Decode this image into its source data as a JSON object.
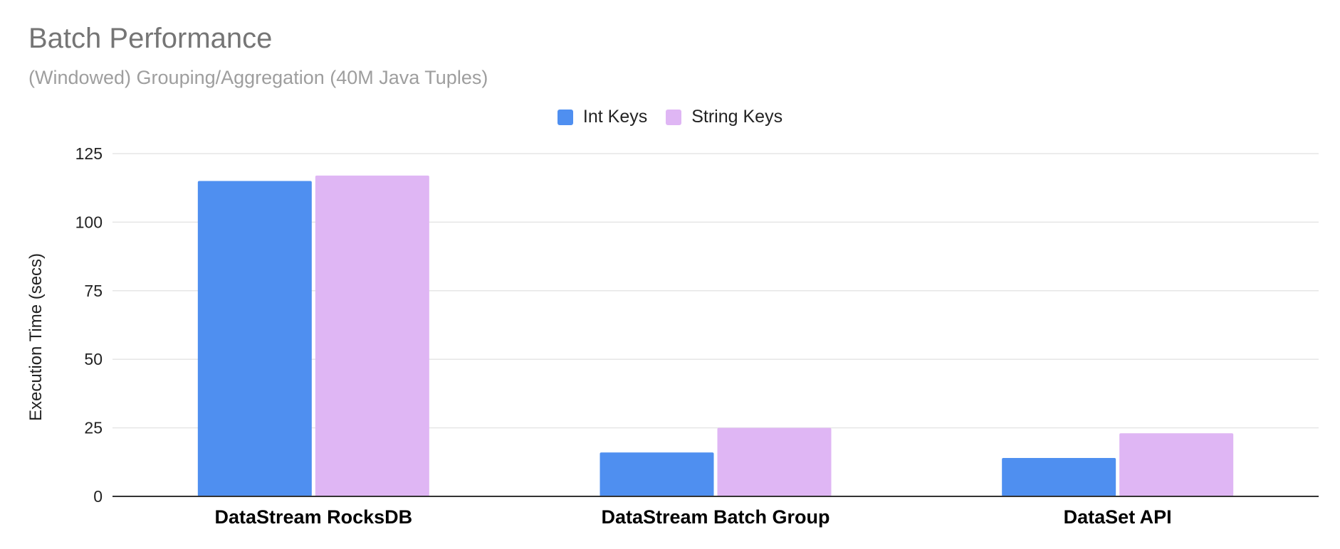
{
  "chart_data": {
    "type": "bar",
    "title": "Batch Performance",
    "subtitle": "(Windowed) Grouping/Aggregation (40M Java Tuples)",
    "xlabel": "",
    "ylabel": "Execution Time (secs)",
    "ylim": [
      0,
      125
    ],
    "yticks": [
      0,
      25,
      50,
      75,
      100,
      125
    ],
    "categories": [
      "DataStream RocksDB",
      "DataStream Batch Group",
      "DataSet API"
    ],
    "series": [
      {
        "name": "Int Keys",
        "color": "#4f8ff0",
        "values": [
          115,
          16,
          14
        ]
      },
      {
        "name": "String Keys",
        "color": "#dfb6f4",
        "values": [
          117,
          25,
          23
        ]
      }
    ],
    "legend_position": "top"
  }
}
